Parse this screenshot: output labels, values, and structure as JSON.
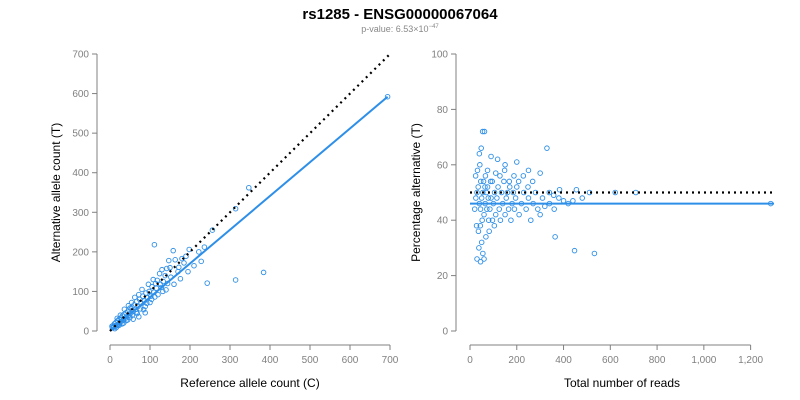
{
  "title": "rs1285 - ENSG00000067064",
  "subtitle": {
    "prefix": "p-value: ",
    "mantissa": "6.53×10",
    "exponent": "−47"
  },
  "colors": {
    "points": "#2E8FE8",
    "fit": "#2E8FE8",
    "reference": "#000000",
    "axis": "#808080"
  },
  "chart_data": [
    {
      "type": "scatter",
      "title": "",
      "xlabel": "Reference allele count (C)",
      "ylabel": "Alternative allele count (T)",
      "xlim": [
        0,
        700
      ],
      "ylim": [
        0,
        700
      ],
      "xticks": [
        0,
        100,
        200,
        300,
        400,
        500,
        600,
        700
      ],
      "yticks": [
        0,
        100,
        200,
        300,
        400,
        500,
        600,
        700
      ],
      "xtick_labels": [
        "0",
        "100",
        "200",
        "300",
        "400",
        "500",
        "600",
        "700"
      ],
      "ytick_labels": [
        "0",
        "100",
        "200",
        "300",
        "400",
        "500",
        "600",
        "700"
      ],
      "grid": false,
      "points": [
        [
          694,
          592
        ],
        [
          347,
          362
        ],
        [
          314,
          309
        ],
        [
          256,
          255
        ],
        [
          111,
          218
        ],
        [
          384,
          148
        ],
        [
          314,
          129
        ],
        [
          243,
          121
        ],
        [
          236,
          212
        ],
        [
          222,
          200
        ],
        [
          198,
          206
        ],
        [
          190,
          189
        ],
        [
          180,
          183
        ],
        [
          172,
          161
        ],
        [
          163,
          180
        ],
        [
          158,
          203
        ],
        [
          150,
          160
        ],
        [
          147,
          178
        ],
        [
          138,
          140
        ],
        [
          133,
          125
        ],
        [
          128,
          110
        ],
        [
          124,
          145
        ],
        [
          118,
          128
        ],
        [
          114,
          120
        ],
        [
          110,
          98
        ],
        [
          105,
          112
        ],
        [
          102,
          88
        ],
        [
          98,
          100
        ],
        [
          94,
          84
        ],
        [
          90,
          96
        ],
        [
          86,
          76
        ],
        [
          82,
          88
        ],
        [
          78,
          70
        ],
        [
          74,
          80
        ],
        [
          70,
          62
        ],
        [
          67,
          75
        ],
        [
          64,
          55
        ],
        [
          60,
          66
        ],
        [
          58,
          50
        ],
        [
          55,
          60
        ],
        [
          52,
          45
        ],
        [
          50,
          58
        ],
        [
          48,
          40
        ],
        [
          45,
          50
        ],
        [
          42,
          36
        ],
        [
          40,
          46
        ],
        [
          38,
          32
        ],
        [
          35,
          42
        ],
        [
          33,
          28
        ],
        [
          31,
          38
        ],
        [
          29,
          25
        ],
        [
          27,
          33
        ],
        [
          25,
          22
        ],
        [
          23,
          30
        ],
        [
          21,
          18
        ],
        [
          19,
          26
        ],
        [
          17,
          15
        ],
        [
          15,
          22
        ],
        [
          13,
          12
        ],
        [
          11,
          18
        ],
        [
          9,
          10
        ],
        [
          8,
          14
        ],
        [
          6,
          8
        ],
        [
          5,
          12
        ],
        [
          44,
          28
        ],
        [
          56,
          40
        ],
        [
          66,
          48
        ],
        [
          76,
          56
        ],
        [
          88,
          62
        ],
        [
          100,
          72
        ],
        [
          120,
          92
        ],
        [
          140,
          104
        ],
        [
          160,
          118
        ],
        [
          176,
          132
        ],
        [
          195,
          150
        ],
        [
          210,
          165
        ],
        [
          228,
          176
        ],
        [
          170,
          150
        ],
        [
          185,
          172
        ],
        [
          132,
          100
        ],
        [
          62,
          85
        ],
        [
          72,
          92
        ],
        [
          80,
          105
        ],
        [
          54,
          72
        ],
        [
          46,
          64
        ],
        [
          36,
          55
        ],
        [
          26,
          40
        ],
        [
          18,
          32
        ],
        [
          96,
          118
        ],
        [
          108,
          130
        ],
        [
          116,
          108
        ],
        [
          126,
          118
        ],
        [
          144,
          120
        ],
        [
          152,
          136
        ],
        [
          130,
          155
        ],
        [
          142,
          158
        ],
        [
          30,
          18
        ],
        [
          40,
          26
        ],
        [
          50,
          34
        ],
        [
          68,
          44
        ],
        [
          84,
          54
        ],
        [
          92,
          70
        ],
        [
          104,
          80
        ],
        [
          112,
          86
        ],
        [
          22,
          14
        ],
        [
          12,
          6
        ],
        [
          16,
          9
        ],
        [
          24,
          16
        ],
        [
          34,
          20
        ],
        [
          58,
          30
        ],
        [
          72,
          36
        ],
        [
          88,
          46
        ]
      ],
      "fit_line": {
        "x": [
          0,
          694
        ],
        "y": [
          0,
          592
        ]
      },
      "reference_line": {
        "x": [
          0,
          700
        ],
        "y": [
          0,
          700
        ]
      }
    },
    {
      "type": "scatter",
      "title": "",
      "xlabel": "Total number of reads",
      "ylabel": "Percentage alternative (T)",
      "xlim": [
        0,
        1300
      ],
      "ylim": [
        0,
        100
      ],
      "xticks": [
        0,
        200,
        400,
        600,
        800,
        1000,
        1200
      ],
      "yticks": [
        0,
        20,
        40,
        60,
        80,
        100
      ],
      "xtick_labels": [
        "0",
        "200",
        "400",
        "600",
        "800",
        "1,000",
        "1,200"
      ],
      "ytick_labels": [
        "0",
        "20",
        "40",
        "60",
        "80",
        "100"
      ],
      "grid": false,
      "points": [
        [
          1286,
          46
        ],
        [
          709,
          50
        ],
        [
          621,
          50
        ],
        [
          511,
          50
        ],
        [
          455,
          51
        ],
        [
          383,
          51
        ],
        [
          358,
          49
        ],
        [
          339,
          50
        ],
        [
          532,
          28
        ],
        [
          447,
          29
        ],
        [
          364,
          34
        ],
        [
          329,
          66
        ],
        [
          62,
          72
        ],
        [
          54,
          72
        ],
        [
          48,
          66
        ],
        [
          40,
          64
        ],
        [
          90,
          63
        ],
        [
          118,
          62
        ],
        [
          150,
          60
        ],
        [
          200,
          61
        ],
        [
          250,
          58
        ],
        [
          300,
          57
        ],
        [
          110,
          57
        ],
        [
          75,
          58
        ],
        [
          30,
          26
        ],
        [
          45,
          25
        ],
        [
          60,
          26
        ],
        [
          55,
          28
        ],
        [
          38,
          30
        ],
        [
          50,
          32
        ],
        [
          68,
          34
        ],
        [
          82,
          36
        ],
        [
          20,
          44
        ],
        [
          25,
          48
        ],
        [
          30,
          50
        ],
        [
          35,
          52
        ],
        [
          40,
          46
        ],
        [
          45,
          44
        ],
        [
          50,
          48
        ],
        [
          55,
          50
        ],
        [
          60,
          42
        ],
        [
          65,
          46
        ],
        [
          70,
          50
        ],
        [
          75,
          52
        ],
        [
          80,
          40
        ],
        [
          85,
          44
        ],
        [
          90,
          48
        ],
        [
          95,
          54
        ],
        [
          100,
          46
        ],
        [
          105,
          50
        ],
        [
          110,
          42
        ],
        [
          115,
          48
        ],
        [
          120,
          52
        ],
        [
          125,
          44
        ],
        [
          130,
          40
        ],
        [
          135,
          50
        ],
        [
          140,
          46
        ],
        [
          145,
          54
        ],
        [
          150,
          42
        ],
        [
          155,
          48
        ],
        [
          160,
          50
        ],
        [
          165,
          44
        ],
        [
          170,
          52
        ],
        [
          175,
          40
        ],
        [
          180,
          46
        ],
        [
          185,
          50
        ],
        [
          190,
          44
        ],
        [
          195,
          48
        ],
        [
          200,
          52
        ],
        [
          210,
          42
        ],
        [
          220,
          46
        ],
        [
          230,
          50
        ],
        [
          240,
          44
        ],
        [
          250,
          48
        ],
        [
          260,
          40
        ],
        [
          270,
          46
        ],
        [
          280,
          50
        ],
        [
          290,
          44
        ],
        [
          300,
          42
        ],
        [
          310,
          48
        ],
        [
          320,
          45
        ],
        [
          340,
          46
        ],
        [
          360,
          44
        ],
        [
          380,
          48
        ],
        [
          400,
          47
        ],
        [
          420,
          46
        ],
        [
          440,
          47
        ],
        [
          480,
          48
        ],
        [
          28,
          38
        ],
        [
          36,
          36
        ],
        [
          44,
          38
        ],
        [
          52,
          40
        ],
        [
          58,
          54
        ],
        [
          66,
          56
        ],
        [
          72,
          44
        ],
        [
          78,
          48
        ],
        [
          24,
          56
        ],
        [
          32,
          58
        ],
        [
          42,
          60
        ],
        [
          46,
          54
        ],
        [
          64,
          52
        ],
        [
          88,
          54
        ],
        [
          96,
          40
        ],
        [
          104,
          38
        ],
        [
          128,
          56
        ],
        [
          148,
          58
        ],
        [
          168,
          54
        ],
        [
          188,
          56
        ],
        [
          208,
          54
        ],
        [
          228,
          56
        ],
        [
          248,
          52
        ],
        [
          268,
          54
        ]
      ],
      "fit_line": {
        "x": [
          0,
          1300
        ],
        "y": [
          46,
          46
        ]
      },
      "reference_line": {
        "x": [
          0,
          1300
        ],
        "y": [
          50,
          50
        ]
      }
    }
  ]
}
